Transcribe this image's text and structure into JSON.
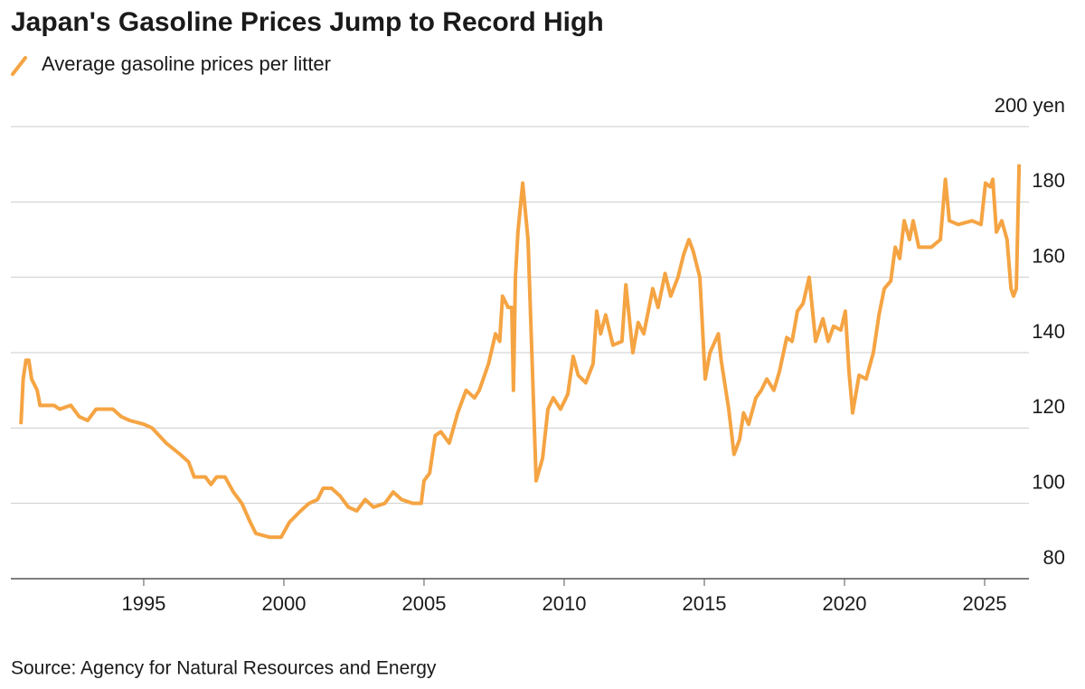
{
  "chart_data": {
    "type": "line",
    "title": "Japan's Gasoline Prices Jump to Record High",
    "source": "Source: Agency for Natural Resources and Energy",
    "x": [
      1990.62,
      1990.7,
      1990.8,
      1990.9,
      1991.0,
      1991.2,
      1991.3,
      1991.8,
      1992.0,
      1992.4,
      1992.7,
      1993.0,
      1993.3,
      1993.9,
      1994.2,
      1994.5,
      1995.0,
      1995.3,
      1995.8,
      1996.3,
      1996.6,
      1996.8,
      1997.2,
      1997.4,
      1997.6,
      1997.9,
      1998.2,
      1998.5,
      1998.8,
      1999.0,
      1999.5,
      1999.9,
      2000.2,
      2000.6,
      2000.9,
      2001.2,
      2001.4,
      2001.7,
      2002.0,
      2002.3,
      2002.6,
      2002.9,
      2003.2,
      2003.6,
      2003.9,
      2004.2,
      2004.6,
      2004.9,
      2005.0,
      2005.2,
      2005.4,
      2005.6,
      2005.9,
      2006.2,
      2006.5,
      2006.8,
      2006.97,
      2007.3,
      2007.55,
      2007.7,
      2007.8,
      2008.0,
      2008.13,
      2008.19,
      2008.26,
      2008.35,
      2008.52,
      2008.71,
      2009.0,
      2009.23,
      2009.42,
      2009.61,
      2009.87,
      2010.13,
      2010.32,
      2010.5,
      2010.77,
      2011.03,
      2011.16,
      2011.3,
      2011.48,
      2011.74,
      2012.06,
      2012.2,
      2012.45,
      2012.64,
      2012.84,
      2013.16,
      2013.35,
      2013.6,
      2013.8,
      2014.06,
      2014.26,
      2014.45,
      2014.6,
      2014.84,
      2015.03,
      2015.2,
      2015.5,
      2015.6,
      2015.87,
      2016.06,
      2016.26,
      2016.4,
      2016.58,
      2016.84,
      2017.03,
      2017.23,
      2017.48,
      2017.68,
      2017.94,
      2018.13,
      2018.32,
      2018.52,
      2018.74,
      2018.97,
      2019.23,
      2019.42,
      2019.61,
      2019.87,
      2020.03,
      2020.16,
      2020.29,
      2020.52,
      2020.77,
      2021.03,
      2021.23,
      2021.42,
      2021.65,
      2021.81,
      2021.97,
      2022.13,
      2022.32,
      2022.45,
      2022.65,
      2023.1,
      2023.42,
      2023.6,
      2023.74,
      2024.06,
      2024.55,
      2024.87,
      2025.03,
      2025.2,
      2025.29,
      2025.42,
      2025.61,
      2025.8,
      2025.94,
      2026.03,
      2026.13,
      2026.23
    ],
    "series": [
      {
        "name": "Average gasoline prices per litter",
        "color": "#f5a443",
        "values": [
          121,
          133,
          138,
          138,
          133,
          130,
          126,
          126,
          125,
          126,
          123,
          122,
          125,
          125,
          123,
          122,
          121,
          120,
          116,
          113,
          111,
          107,
          107,
          105,
          107,
          107,
          103,
          100,
          95,
          92,
          91,
          91,
          95,
          98,
          100,
          101,
          104,
          104,
          102,
          99,
          98,
          101,
          99,
          100,
          103,
          101,
          100,
          100,
          106,
          108,
          118,
          119,
          116,
          124,
          130,
          128,
          130,
          137,
          145,
          143,
          155,
          152,
          152,
          130,
          160,
          172,
          185,
          170,
          106,
          112,
          125,
          128,
          125,
          129,
          139,
          134,
          132,
          137,
          151,
          145,
          150,
          142,
          143,
          158,
          140,
          148,
          145,
          157,
          152,
          161,
          155,
          160,
          166,
          170,
          167,
          160,
          133,
          140,
          145,
          138,
          125,
          113,
          117,
          124,
          121,
          128,
          130,
          133,
          130,
          135,
          144,
          143,
          151,
          153,
          160,
          143,
          149,
          143,
          147,
          146,
          151,
          135,
          124,
          134,
          133,
          140,
          150,
          157,
          159,
          168,
          165,
          175,
          170,
          175,
          168,
          168,
          170,
          186,
          175,
          174,
          175,
          174,
          185,
          184,
          186,
          172,
          175,
          170,
          157,
          155,
          157,
          190
        ]
      }
    ],
    "xlim": [
      1990.26,
      2026.58
    ],
    "xticks": [
      1995,
      2000,
      2005,
      2010,
      2015,
      2020,
      2025
    ],
    "ylim": [
      80,
      200
    ],
    "yticks": [
      80,
      100,
      120,
      140,
      160,
      180,
      {
        "value": 200,
        "label": "200 yen"
      }
    ],
    "grid": true
  }
}
